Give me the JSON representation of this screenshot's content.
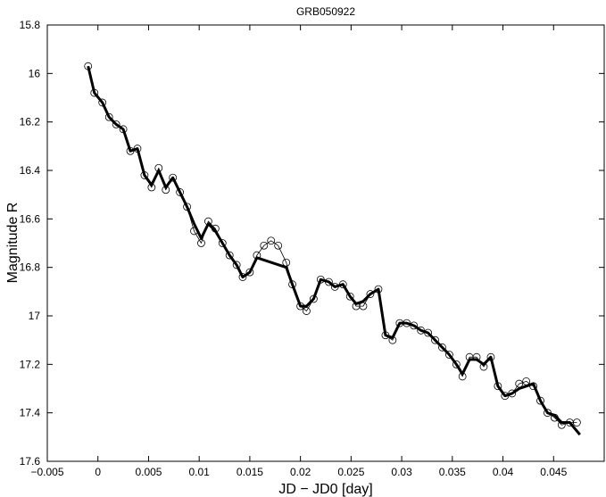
{
  "chart_data": {
    "type": "line",
    "title": "GRB050922",
    "xlabel": "JD − JD0  [day]",
    "ylabel": "Magnitude  R",
    "xlim": [
      -0.005,
      0.05
    ],
    "ylim": [
      15.8,
      17.6
    ],
    "y_inverted": true,
    "xticks": [
      {
        "value": -0.005,
        "label": "−0.005"
      },
      0,
      0.005,
      0.01,
      0.015,
      0.02,
      0.025,
      0.03,
      0.035,
      0.04,
      0.045
    ],
    "yticks": [
      15.8,
      16,
      16.2,
      16.4,
      16.6,
      16.8,
      17,
      17.2,
      17.4,
      17.6
    ],
    "series": [
      {
        "color": "#000000",
        "marker": "open-circle",
        "line_width": 0.8,
        "x": [
          -0.00097,
          -0.00035,
          0.00044,
          0.0011,
          0.0018,
          0.0025,
          0.0032,
          0.0039,
          0.0046,
          0.0053,
          0.006,
          0.0067,
          0.0074,
          0.0081,
          0.0088,
          0.0095,
          0.0102,
          0.0109,
          0.0116,
          0.0123,
          0.013,
          0.0137,
          0.0143,
          0.015,
          0.0157,
          0.0164,
          0.0171,
          0.0178,
          0.0186,
          0.0192,
          0.02,
          0.0206,
          0.0213,
          0.022,
          0.0228,
          0.0234,
          0.0242,
          0.0249,
          0.0255,
          0.0262,
          0.0269,
          0.0277,
          0.0284,
          0.0291,
          0.0298,
          0.0305,
          0.0312,
          0.0319,
          0.0326,
          0.0333,
          0.034,
          0.0347,
          0.0354,
          0.036,
          0.0367,
          0.0374,
          0.0381,
          0.0388,
          0.0395,
          0.0402,
          0.0409,
          0.0416,
          0.0423,
          0.043,
          0.0437,
          0.0444,
          0.0451,
          0.0458,
          0.0466,
          0.0473
        ],
        "values": [
          15.97,
          16.08,
          16.12,
          16.18,
          16.21,
          16.23,
          16.32,
          16.31,
          16.42,
          16.47,
          16.39,
          16.48,
          16.43,
          16.49,
          16.55,
          16.65,
          16.7,
          16.61,
          16.64,
          16.7,
          16.75,
          16.79,
          16.84,
          16.82,
          16.75,
          16.71,
          16.69,
          16.71,
          16.78,
          16.87,
          16.96,
          16.98,
          16.93,
          16.85,
          16.86,
          16.88,
          16.87,
          16.92,
          16.96,
          16.96,
          16.91,
          16.89,
          17.08,
          17.1,
          17.03,
          17.03,
          17.04,
          17.06,
          17.07,
          17.1,
          17.13,
          17.16,
          17.2,
          17.25,
          17.17,
          17.17,
          17.21,
          17.17,
          17.29,
          17.33,
          17.32,
          17.28,
          17.27,
          17.29,
          17.35,
          17.4,
          17.42,
          17.45,
          17.44,
          17.44
        ]
      },
      {
        "color": "#000000",
        "marker": "none",
        "line_width": 3,
        "x": [
          -0.00097,
          -0.00035,
          0.00044,
          0.0011,
          0.0018,
          0.0025,
          0.0032,
          0.0039,
          0.0046,
          0.0053,
          0.006,
          0.0067,
          0.0074,
          0.0081,
          0.0088,
          0.0095,
          0.0102,
          0.0109,
          0.0116,
          0.0123,
          0.013,
          0.0137,
          0.0143,
          0.015,
          0.0157,
          0.0186,
          0.0192,
          0.02,
          0.0206,
          0.0213,
          0.022,
          0.0228,
          0.0234,
          0.0242,
          0.0249,
          0.0255,
          0.0262,
          0.0269,
          0.0277,
          0.0284,
          0.0291,
          0.0298,
          0.0305,
          0.0312,
          0.0319,
          0.0326,
          0.0333,
          0.034,
          0.0347,
          0.0354,
          0.036,
          0.0367,
          0.0374,
          0.0381,
          0.0388,
          0.0395,
          0.0402,
          0.0409,
          0.0416,
          0.0423,
          0.043,
          0.0437,
          0.0444,
          0.0451,
          0.0458,
          0.0466,
          0.0476
        ],
        "values": [
          15.97,
          16.08,
          16.12,
          16.18,
          16.21,
          16.23,
          16.32,
          16.31,
          16.42,
          16.46,
          16.4,
          16.47,
          16.43,
          16.49,
          16.55,
          16.62,
          16.68,
          16.62,
          16.65,
          16.7,
          16.75,
          16.79,
          16.84,
          16.82,
          16.76,
          16.8,
          16.87,
          16.96,
          16.96,
          16.93,
          16.85,
          16.86,
          16.88,
          16.87,
          16.92,
          16.95,
          16.94,
          16.91,
          16.89,
          17.08,
          17.09,
          17.03,
          17.03,
          17.04,
          17.06,
          17.07,
          17.1,
          17.13,
          17.16,
          17.2,
          17.24,
          17.18,
          17.18,
          17.2,
          17.17,
          17.29,
          17.33,
          17.32,
          17.3,
          17.29,
          17.28,
          17.35,
          17.4,
          17.41,
          17.44,
          17.44,
          17.49
        ]
      }
    ]
  }
}
